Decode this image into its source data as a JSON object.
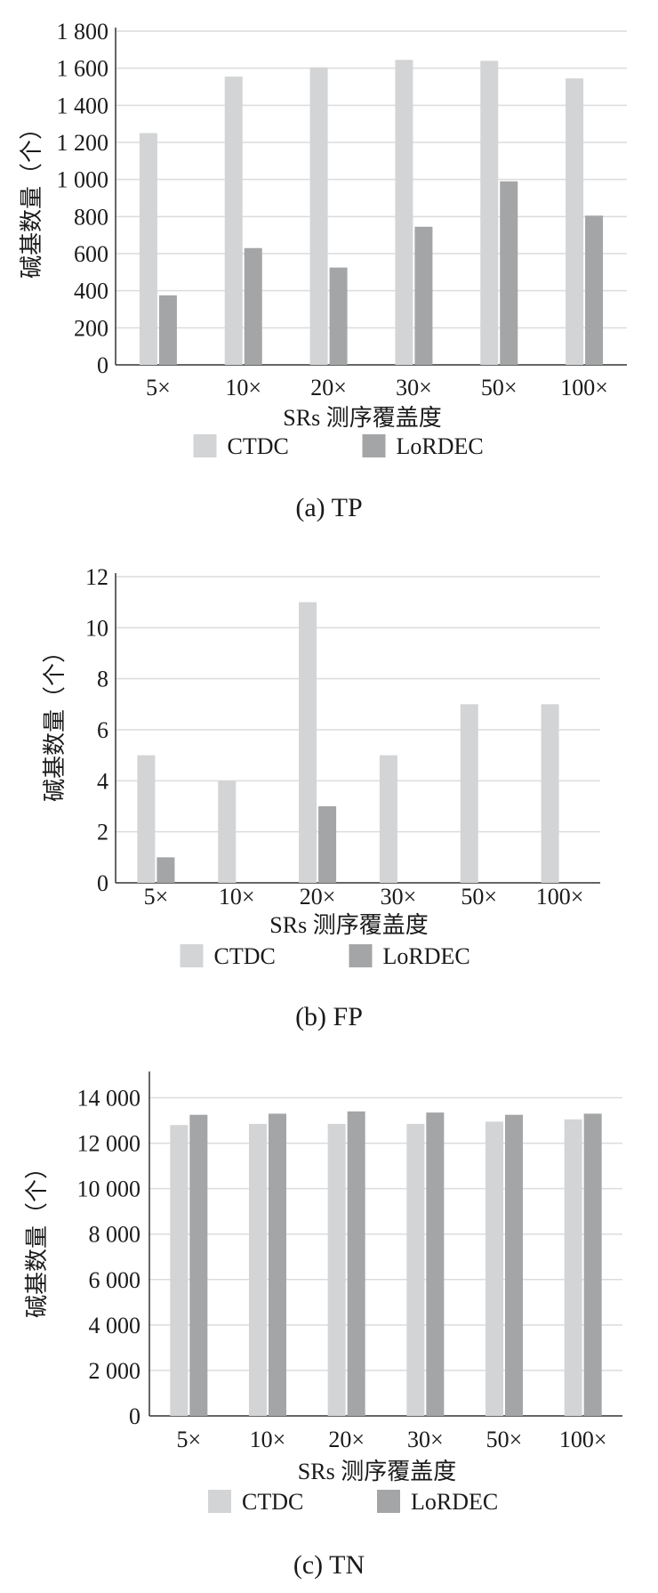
{
  "chart_data": [
    {
      "type": "bar",
      "caption": "(a) TP",
      "categories": [
        "5×",
        "10×",
        "20×",
        "30×",
        "50×",
        "100×"
      ],
      "series": [
        {
          "name": "CTDC",
          "values": [
            1250,
            1555,
            1605,
            1645,
            1640,
            1545
          ]
        },
        {
          "name": "LoRDEC",
          "values": [
            375,
            630,
            525,
            745,
            990,
            805
          ]
        }
      ],
      "xlabel": "SRs 测序覆盖度",
      "ylabel": "碱基数量（个）",
      "ylim": [
        0,
        1800
      ],
      "yticks": [
        0,
        200,
        400,
        600,
        800,
        1000,
        1200,
        1400,
        1600,
        1800
      ],
      "ytick_labels": [
        "0",
        "200",
        "400",
        "600",
        "800",
        "1 000",
        "1 200",
        "1 400",
        "1 600",
        "1 800"
      ],
      "grid": true,
      "legend": "bottom",
      "colors": {
        "CTDC": "#d3d4d5",
        "LoRDEC": "#a4a5a6"
      }
    },
    {
      "type": "bar",
      "caption": "(b) FP",
      "categories": [
        "5×",
        "10×",
        "20×",
        "30×",
        "50×",
        "100×"
      ],
      "series": [
        {
          "name": "CTDC",
          "values": [
            5,
            4,
            11,
            5,
            7,
            7
          ]
        },
        {
          "name": "LoRDEC",
          "values": [
            1,
            0,
            3,
            0,
            0,
            0
          ]
        }
      ],
      "xlabel": "SRs 测序覆盖度",
      "ylabel": "碱基数量（个）",
      "ylim": [
        0,
        12
      ],
      "yticks": [
        0,
        2,
        4,
        6,
        8,
        10,
        12
      ],
      "ytick_labels": [
        "0",
        "2",
        "4",
        "6",
        "8",
        "10",
        "12"
      ],
      "grid": true,
      "legend": "bottom",
      "colors": {
        "CTDC": "#d3d4d5",
        "LoRDEC": "#a4a5a6"
      }
    },
    {
      "type": "bar",
      "caption": "(c) TN",
      "categories": [
        "5×",
        "10×",
        "20×",
        "30×",
        "50×",
        "100×"
      ],
      "series": [
        {
          "name": "CTDC",
          "values": [
            12800,
            12850,
            12850,
            12850,
            12950,
            13050
          ]
        },
        {
          "name": "LoRDEC",
          "values": [
            13250,
            13300,
            13400,
            13350,
            13250,
            13300
          ]
        }
      ],
      "xlabel": "SRs 测序覆盖度",
      "ylabel": "碱基数量（个）",
      "ylim": [
        0,
        15000
      ],
      "yticks": [
        0,
        2000,
        4000,
        6000,
        8000,
        10000,
        12000,
        14000
      ],
      "ytick_labels": [
        "0",
        "2 000",
        "4 000",
        "6 000",
        "8 000",
        "10 000",
        "12 000",
        "14 000"
      ],
      "grid": true,
      "legend": "bottom",
      "colors": {
        "CTDC": "#d3d4d5",
        "LoRDEC": "#a4a5a6"
      }
    }
  ]
}
